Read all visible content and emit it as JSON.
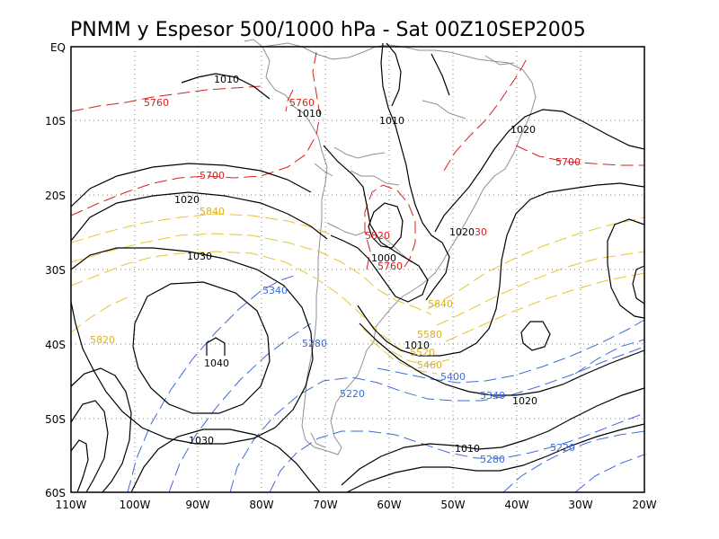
{
  "title": "PNMM y Espesor 500/1000 hPa - Sat 00Z10SEP2005",
  "colors": {
    "pressure": "#000000",
    "thickness_red": "#d71f1f",
    "thickness_yellow": "#e8c431",
    "thickness_blue": "#3a6bd8",
    "coast": "#909090",
    "grid": "#808080"
  },
  "axes": {
    "lat_labels": [
      "EQ",
      "10S",
      "20S",
      "30S",
      "40S",
      "50S",
      "60S"
    ],
    "lon_labels": [
      "110W",
      "100W",
      "90W",
      "80W",
      "70W",
      "60W",
      "50W",
      "40W",
      "30W",
      "20W"
    ]
  },
  "labels": {
    "p1010_a": "1010",
    "p1010_b": "1010",
    "p1010_c": "1010",
    "p1010_d": "1010",
    "p1010_e": "1010",
    "p1020_a": "1020",
    "p1020_b": "1020",
    "p1020_c": "1020",
    "p1020_d": "1020",
    "p1030_a": "1030",
    "p1030_b": "1030",
    "p1040": "1040",
    "p1000": "1000",
    "t5760_a": "5760",
    "t5760_b": "5760",
    "t5760_c": "5760",
    "t5700_a": "5700",
    "t5700_b": "5700",
    "t5820": "5820",
    "t5840_a": "5840",
    "t5840_b": "5840",
    "t5820_y": "5820",
    "t5580": "5580",
    "t5520": "5520",
    "t5460": "5460",
    "t5340_a": "5340",
    "t5340_b": "5340",
    "t5280_a": "5280",
    "t5280_b": "5280",
    "t5220_a": "5220",
    "t5220_b": "5220",
    "t5400": "5400",
    "t30": "30"
  }
}
